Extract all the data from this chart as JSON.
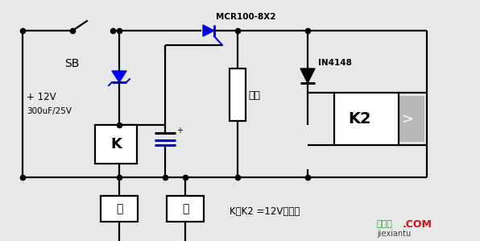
{
  "bg_color": "#e8e8e8",
  "line_color": "#000000",
  "blue_color": "#0000ee",
  "gray_color": "#b8b8b8",
  "white_color": "#ffffff",
  "fig_width": 5.96,
  "fig_height": 2.99,
  "dpi": 100,
  "labels": {
    "SB": "SB",
    "plus12v": "+ 12V",
    "cap_label": "300uF/25V",
    "K_box": "K",
    "K2_box": "K2",
    "mcr": "MCR100-8X2",
    "diode": "IN4148",
    "load": "负载",
    "kai": "开",
    "guan": "关",
    "legend": "K、K2 =12V继电器",
    "watermark1": "接线图",
    "watermark2": ".COM",
    "watermark3": "jiexiantu"
  }
}
